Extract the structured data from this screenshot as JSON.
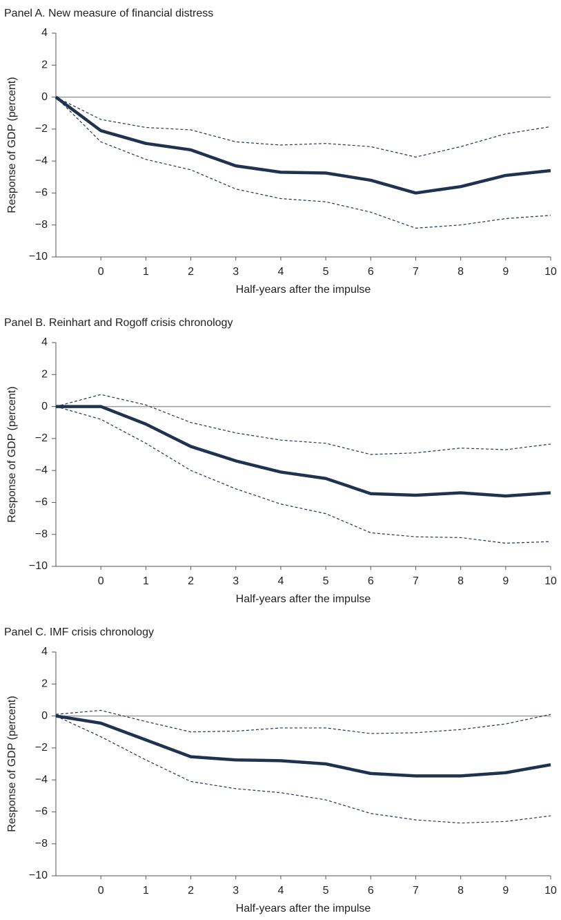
{
  "chart_data": [
    {
      "type": "line",
      "title": "Panel A. New measure of financial distress",
      "x_label": "Half-years after the impulse",
      "y_label": "Response of GDP (percent)",
      "x": [
        -1,
        0,
        1,
        2,
        3,
        4,
        5,
        6,
        7,
        8,
        9,
        10
      ],
      "xlim": [
        -1,
        10
      ],
      "xticks": [
        0,
        1,
        2,
        3,
        4,
        5,
        6,
        7,
        8,
        9,
        10
      ],
      "ylim": [
        -10,
        4
      ],
      "yticks": [
        {
          "value": -10,
          "label": "−10"
        },
        {
          "value": -8,
          "label": "−8"
        },
        {
          "value": -6,
          "label": "−6"
        },
        {
          "value": -4,
          "label": "−4"
        },
        {
          "value": -2,
          "label": "−2"
        },
        0,
        2,
        4
      ],
      "reference_line": 0,
      "series": [
        {
          "color": "#1f3350",
          "style": "solid",
          "values": [
            0,
            -2.1,
            -2.9,
            -3.3,
            -4.3,
            -4.7,
            -4.75,
            -5.2,
            -6.0,
            -5.6,
            -4.9,
            -4.6
          ]
        },
        {
          "color": "#1f3350",
          "style": "dashed",
          "values": [
            0,
            -1.4,
            -1.9,
            -2.05,
            -2.8,
            -3.0,
            -2.9,
            -3.1,
            -3.75,
            -3.1,
            -2.3,
            -1.85
          ]
        },
        {
          "color": "#1f3350",
          "style": "dashed",
          "values": [
            0,
            -2.8,
            -3.9,
            -4.55,
            -5.75,
            -6.35,
            -6.55,
            -7.2,
            -8.2,
            -8.0,
            -7.6,
            -7.4
          ]
        }
      ]
    },
    {
      "type": "line",
      "title": "Panel B. Reinhart and Rogoff crisis chronology",
      "x_label": "Half-years after the impulse",
      "y_label": "Response of GDP (percent)",
      "x": [
        -1,
        0,
        1,
        2,
        3,
        4,
        5,
        6,
        7,
        8,
        9,
        10
      ],
      "xlim": [
        -1,
        10
      ],
      "xticks": [
        0,
        1,
        2,
        3,
        4,
        5,
        6,
        7,
        8,
        9,
        10
      ],
      "ylim": [
        -10,
        4
      ],
      "yticks": [
        {
          "value": -10,
          "label": "−10"
        },
        {
          "value": -8,
          "label": "−8"
        },
        {
          "value": -6,
          "label": "−6"
        },
        {
          "value": -4,
          "label": "−4"
        },
        {
          "value": -2,
          "label": "−2"
        },
        0,
        2,
        4
      ],
      "reference_line": 0,
      "series": [
        {
          "color": "#1f3350",
          "style": "solid",
          "values": [
            0,
            0,
            -1.1,
            -2.5,
            -3.4,
            -4.1,
            -4.5,
            -5.45,
            -5.55,
            -5.4,
            -5.6,
            -5.4
          ]
        },
        {
          "color": "#1f3350",
          "style": "dashed",
          "values": [
            0,
            0.75,
            0.1,
            -1.0,
            -1.65,
            -2.1,
            -2.3,
            -3.0,
            -2.9,
            -2.6,
            -2.7,
            -2.35
          ]
        },
        {
          "color": "#1f3350",
          "style": "dashed",
          "values": [
            0,
            -0.8,
            -2.3,
            -4.0,
            -5.15,
            -6.1,
            -6.7,
            -7.9,
            -8.15,
            -8.2,
            -8.55,
            -8.45
          ]
        }
      ]
    },
    {
      "type": "line",
      "title": "Panel C. IMF crisis chronology",
      "x_label": "Half-years after the impulse",
      "y_label": "Response of GDP (percent)",
      "x": [
        -1,
        0,
        1,
        2,
        3,
        4,
        5,
        6,
        7,
        8,
        9,
        10
      ],
      "xlim": [
        -1,
        10
      ],
      "xticks": [
        0,
        1,
        2,
        3,
        4,
        5,
        6,
        7,
        8,
        9,
        10
      ],
      "ylim": [
        -10,
        4
      ],
      "yticks": [
        {
          "value": -10,
          "label": "−10"
        },
        {
          "value": -8,
          "label": "−8"
        },
        {
          "value": -6,
          "label": "−6"
        },
        {
          "value": -4,
          "label": "−4"
        },
        {
          "value": -2,
          "label": "−2"
        },
        0,
        2,
        4
      ],
      "reference_line": 0,
      "series": [
        {
          "color": "#1f3350",
          "style": "solid",
          "values": [
            0,
            -0.45,
            -1.5,
            -2.55,
            -2.75,
            -2.8,
            -3.0,
            -3.6,
            -3.75,
            -3.75,
            -3.55,
            -3.05
          ]
        },
        {
          "color": "#1f3350",
          "style": "dashed",
          "values": [
            0.1,
            0.35,
            -0.35,
            -1.0,
            -0.95,
            -0.75,
            -0.75,
            -1.1,
            -1.05,
            -0.85,
            -0.5,
            0.1
          ]
        },
        {
          "color": "#1f3350",
          "style": "dashed",
          "values": [
            0,
            -1.3,
            -2.75,
            -4.1,
            -4.55,
            -4.8,
            -5.25,
            -6.1,
            -6.5,
            -6.7,
            -6.6,
            -6.25
          ]
        }
      ]
    }
  ]
}
